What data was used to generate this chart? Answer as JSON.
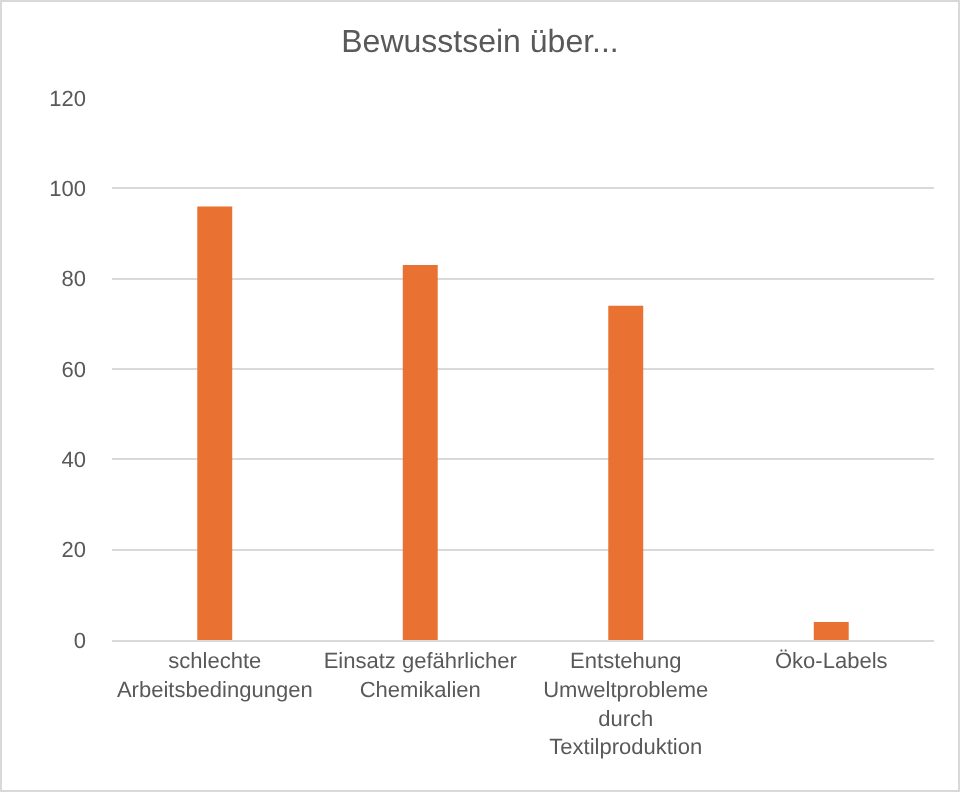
{
  "chart_data": {
    "type": "bar",
    "title": "Bewusstsein über...",
    "categories": [
      "schlechte Arbeitsbedingungen",
      "Einsatz gefährlicher Chemikalien",
      "Entstehung Umweltprobleme durch Textilproduktion",
      "Öko-Labels"
    ],
    "values": [
      96,
      83,
      74,
      4
    ],
    "color": "#e97132",
    "ylim": [
      0,
      120
    ],
    "yticks": [
      0,
      20,
      40,
      60,
      80,
      100,
      120
    ],
    "grid": "y"
  }
}
